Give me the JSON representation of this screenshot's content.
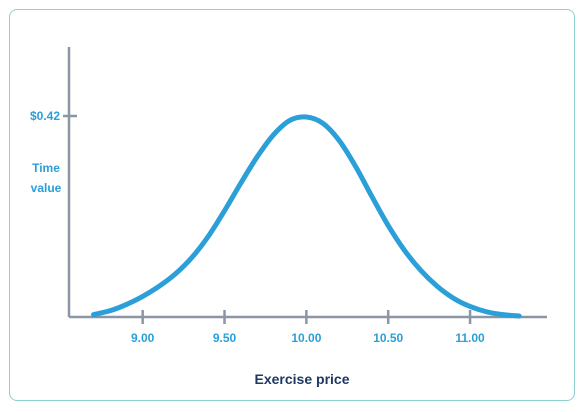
{
  "chart_data": {
    "type": "line",
    "title": "",
    "xlabel": "Exercise price",
    "ylabel_lines": [
      "Time",
      "value"
    ],
    "x_ticks": [
      "9.00",
      "9.50",
      "10.00",
      "10.50",
      "11.00"
    ],
    "y_ticks": [
      {
        "value": 0.42,
        "label": "$0.42"
      }
    ],
    "xlim": [
      8.55,
      11.47
    ],
    "ylim": [
      0,
      0.42
    ],
    "series": [
      {
        "x": [
          8.7,
          8.8,
          8.9,
          9.0,
          9.1,
          9.2,
          9.3,
          9.4,
          9.5,
          9.6,
          9.7,
          9.8,
          9.9,
          10.0,
          10.1,
          10.2,
          10.3,
          10.4,
          10.5,
          10.6,
          10.7,
          10.8,
          10.9,
          11.0,
          11.1,
          11.2,
          11.3
        ],
        "y": [
          0.005,
          0.013,
          0.026,
          0.043,
          0.064,
          0.09,
          0.124,
          0.168,
          0.222,
          0.28,
          0.335,
          0.381,
          0.411,
          0.418,
          0.405,
          0.369,
          0.315,
          0.252,
          0.191,
          0.139,
          0.097,
          0.064,
          0.039,
          0.022,
          0.011,
          0.005,
          0.002
        ]
      }
    ],
    "grid": false,
    "legend": "none"
  },
  "colors": {
    "curve": "#2a9fd8",
    "axis": "#8a96a3",
    "tick_label": "#2a9fd8",
    "xlabel": "#1f3864",
    "frame": "#8ecfcf"
  }
}
